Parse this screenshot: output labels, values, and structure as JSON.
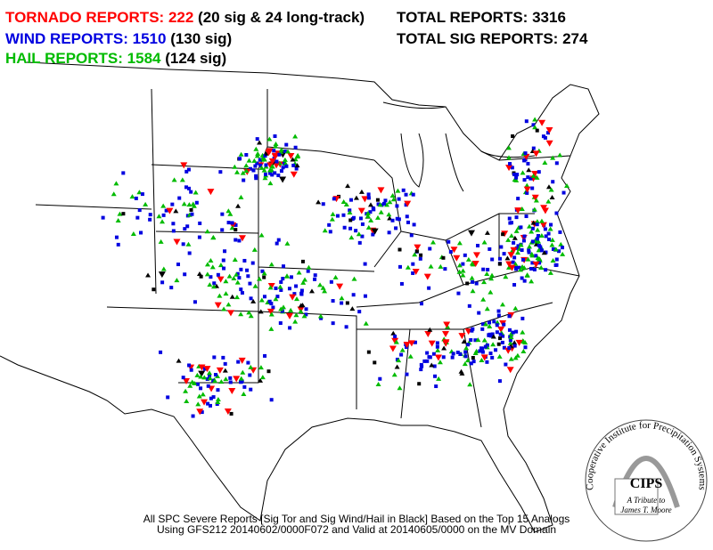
{
  "header": {
    "tornado": {
      "label": "TORNADO REPORTS:",
      "count": 222,
      "detail": "(20 sig & 24 long-track)"
    },
    "wind": {
      "label": "WIND REPORTS:",
      "count": 1510,
      "detail": "(130 sig)"
    },
    "hail": {
      "label": "HAIL REPORTS:",
      "count": 1584,
      "detail": "(124 sig)"
    },
    "total": {
      "label": "TOTAL REPORTS:",
      "count": 3316
    },
    "total_sig": {
      "label": "TOTAL SIG REPORTS:",
      "count": 274
    }
  },
  "footer": {
    "line1": "All SPC Severe Reports [Sig Tor and Sig Wind/Hail in Black] Based on the Top 15 Analogs",
    "line2": "Using GFS212 20140602/0000F072 and Valid at 20140605/0000 on the MV Domain"
  },
  "logo": {
    "ring": "Cooperative Institute for Precipitation Systems",
    "name": "CIPS",
    "tribute": "A Tribute to",
    "person": "James T. Moore"
  }
}
